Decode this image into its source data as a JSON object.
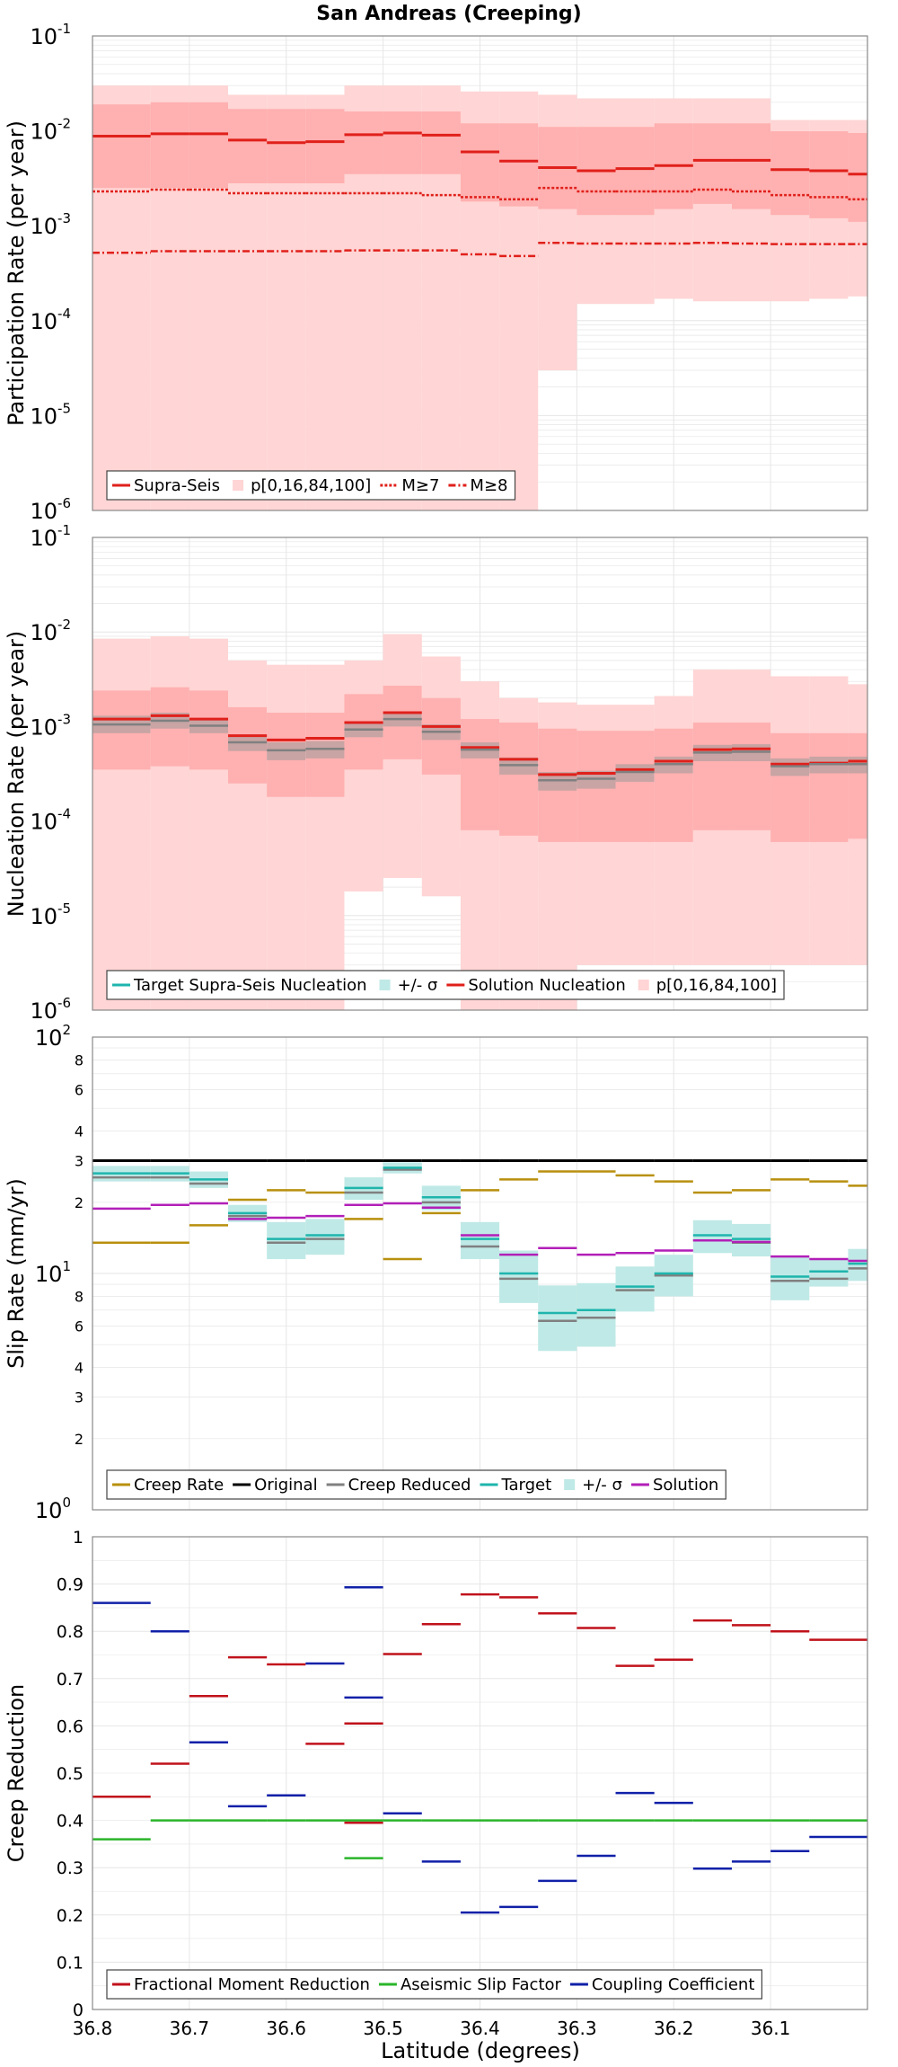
{
  "title": "San Andreas (Creeping)",
  "xlabel": "Latitude (degrees)",
  "x_ticks": [
    "36.8",
    "36.7",
    "36.6",
    "36.5",
    "36.4",
    "36.3",
    "36.2",
    "36.1"
  ],
  "x_tick_values": [
    36.8,
    36.7,
    36.6,
    36.5,
    36.4,
    36.3,
    36.2,
    36.1
  ],
  "xlim": [
    36.8,
    36.0
  ],
  "segment_edges": [
    36.8,
    36.74,
    36.7,
    36.66,
    36.62,
    36.58,
    36.54,
    36.5,
    36.46,
    36.42,
    36.38,
    36.34,
    36.3,
    36.26,
    36.22,
    36.18,
    36.14,
    36.1,
    36.06,
    36.02,
    36.0
  ],
  "colors": {
    "red": "#e0201b",
    "pink": "#ffd5d5",
    "pink_dark": "#ffb0b0",
    "teal": "#1fb5ad",
    "teal_band": "#bfe9e6",
    "grey": "#808080",
    "black": "#000000",
    "gold": "#b8900e",
    "purple": "#b21fb8",
    "crimson": "#c0121b",
    "green": "#2ab52a",
    "navy": "#1020a8",
    "grid": "#e6e6e6"
  },
  "chart_data": [
    {
      "type": "line",
      "scale": "log",
      "ylabel": "Participation Rate (per year)",
      "ylim": [
        1e-06,
        0.1
      ],
      "y_ticks": [
        {
          "base": "10",
          "exp": "-6"
        },
        {
          "base": "10",
          "exp": "-5"
        },
        {
          "base": "10",
          "exp": "-4"
        },
        {
          "base": "10",
          "exp": "-3"
        },
        {
          "base": "10",
          "exp": "-2"
        },
        {
          "base": "10",
          "exp": "-1"
        }
      ],
      "legend": [
        "Supra-Seis",
        "p[0,16,84,100]",
        "M≥7",
        "M≥8"
      ],
      "series": [
        {
          "name": "Supra-Seis",
          "values": [
            0.0088,
            0.0093,
            0.0093,
            0.008,
            0.0075,
            0.0077,
            0.0091,
            0.0095,
            0.009,
            0.006,
            0.0048,
            0.0041,
            0.0038,
            0.004,
            0.0043,
            0.0049,
            0.0049,
            0.0039,
            0.0038,
            0.0035
          ]
        },
        {
          "name": "M≥7",
          "values": [
            0.0023,
            0.0024,
            0.0024,
            0.0022,
            0.0022,
            0.0022,
            0.0022,
            0.0022,
            0.0021,
            0.002,
            0.0019,
            0.0025,
            0.0023,
            0.0023,
            0.0023,
            0.0024,
            0.0023,
            0.0021,
            0.002,
            0.0019
          ]
        },
        {
          "name": "M≥8",
          "values": [
            0.00052,
            0.00054,
            0.00054,
            0.00054,
            0.00054,
            0.00054,
            0.00055,
            0.00055,
            0.00055,
            0.0005,
            0.00048,
            0.00066,
            0.00065,
            0.00065,
            0.00065,
            0.00066,
            0.00065,
            0.00064,
            0.00064,
            0.00064
          ]
        },
        {
          "name": "p0",
          "values": [
            1e-06,
            1e-06,
            1e-06,
            1e-06,
            1e-06,
            1e-06,
            1e-06,
            1e-06,
            1e-06,
            1e-06,
            1e-06,
            3e-05,
            0.00015,
            0.00015,
            0.00017,
            0.00016,
            0.00016,
            0.00016,
            0.00017,
            0.00018
          ]
        },
        {
          "name": "p16",
          "values": [
            0.0025,
            0.0025,
            0.0025,
            0.0028,
            0.0028,
            0.0028,
            0.0035,
            0.0035,
            0.0035,
            0.0018,
            0.0016,
            0.0015,
            0.0013,
            0.0013,
            0.0015,
            0.0017,
            0.0015,
            0.0013,
            0.0012,
            0.0011
          ]
        },
        {
          "name": "p84",
          "values": [
            0.019,
            0.02,
            0.02,
            0.017,
            0.017,
            0.017,
            0.016,
            0.016,
            0.016,
            0.012,
            0.012,
            0.011,
            0.011,
            0.011,
            0.012,
            0.012,
            0.012,
            0.0099,
            0.0099,
            0.0095
          ]
        },
        {
          "name": "p100",
          "values": [
            0.03,
            0.03,
            0.03,
            0.024,
            0.024,
            0.024,
            0.03,
            0.03,
            0.03,
            0.026,
            0.026,
            0.024,
            0.022,
            0.022,
            0.022,
            0.022,
            0.022,
            0.013,
            0.013,
            0.013
          ]
        }
      ]
    },
    {
      "type": "line",
      "scale": "log",
      "ylabel": "Nucleation Rate (per year)",
      "ylim": [
        1e-06,
        0.1
      ],
      "y_ticks": [
        {
          "base": "10",
          "exp": "-6"
        },
        {
          "base": "10",
          "exp": "-5"
        },
        {
          "base": "10",
          "exp": "-4"
        },
        {
          "base": "10",
          "exp": "-3"
        },
        {
          "base": "10",
          "exp": "-2"
        },
        {
          "base": "10",
          "exp": "-1"
        }
      ],
      "legend": [
        "Target Supra-Seis Nucleation",
        "+/- σ",
        "Solution Nucleation",
        "p[0,16,84,100]"
      ],
      "series": [
        {
          "name": "Target",
          "values": [
            0.00105,
            0.00115,
            0.00102,
            0.00068,
            0.00056,
            0.00058,
            0.00093,
            0.0012,
            0.00088,
            0.00057,
            0.00039,
            0.00027,
            0.00028,
            0.00033,
            0.0004,
            0.00053,
            0.00054,
            0.00038,
            0.0004,
            0.0004
          ]
        },
        {
          "name": "Target σ lo",
          "values": [
            0.00085,
            0.00095,
            0.00085,
            0.00055,
            0.00044,
            0.00046,
            0.00077,
            0.001,
            0.00072,
            0.00046,
            0.00031,
            0.00021,
            0.00022,
            0.00026,
            0.00032,
            0.00043,
            0.00043,
            0.0003,
            0.00032,
            0.00032
          ]
        },
        {
          "name": "Target σ hi",
          "values": [
            0.0013,
            0.0014,
            0.0012,
            0.00082,
            0.00068,
            0.0007,
            0.0011,
            0.0014,
            0.00105,
            0.00068,
            0.00047,
            0.00033,
            0.00034,
            0.0004,
            0.00048,
            0.00064,
            0.00065,
            0.00046,
            0.00048,
            0.00048
          ]
        },
        {
          "name": "Solution",
          "values": [
            0.0012,
            0.0013,
            0.0012,
            0.0008,
            0.00072,
            0.00075,
            0.0011,
            0.0014,
            0.001,
            0.0006,
            0.00045,
            0.00031,
            0.00032,
            0.00035,
            0.00043,
            0.00057,
            0.00058,
            0.0004,
            0.00041,
            0.00043
          ]
        },
        {
          "name": "p0",
          "values": [
            1e-06,
            1e-06,
            1e-06,
            1e-06,
            1e-06,
            1e-06,
            1.8e-05,
            2.5e-05,
            1.6e-05,
            1e-06,
            1e-06,
            1e-06,
            3e-06,
            3e-06,
            3e-06,
            3e-06,
            3e-06,
            3e-06,
            3e-06,
            3e-06
          ]
        },
        {
          "name": "p16",
          "values": [
            0.00035,
            0.00038,
            0.00035,
            0.00025,
            0.00018,
            0.00018,
            0.00035,
            0.00045,
            0.00031,
            8e-05,
            7e-05,
            6e-05,
            6e-05,
            6e-05,
            6e-05,
            8e-05,
            8e-05,
            6e-05,
            6e-05,
            6.5e-05
          ]
        },
        {
          "name": "p84",
          "values": [
            0.0024,
            0.0026,
            0.0024,
            0.0016,
            0.0014,
            0.0014,
            0.0022,
            0.0027,
            0.002,
            0.0012,
            0.0011,
            0.00095,
            0.0009,
            0.0009,
            0.00095,
            0.0011,
            0.0011,
            0.00085,
            0.00085,
            0.00085
          ]
        },
        {
          "name": "p100",
          "values": [
            0.0085,
            0.009,
            0.0085,
            0.005,
            0.0045,
            0.0045,
            0.005,
            0.0095,
            0.0055,
            0.003,
            0.002,
            0.0018,
            0.0017,
            0.0017,
            0.0021,
            0.004,
            0.004,
            0.0034,
            0.0034,
            0.0028
          ]
        }
      ]
    },
    {
      "type": "line",
      "scale": "log",
      "ylabel": "Slip Rate (mm/yr)",
      "ylim": [
        1,
        100
      ],
      "y_ticks": [
        {
          "base": "10",
          "exp": "0"
        },
        {
          "base": "10",
          "exp": "1"
        },
        {
          "base": "10",
          "exp": "2"
        }
      ],
      "minor_ticks": [
        {
          "label": "2",
          "value": 2
        },
        {
          "label": "3",
          "value": 3
        },
        {
          "label": "4",
          "value": 4
        },
        {
          "label": "6",
          "value": 6
        },
        {
          "label": "8",
          "value": 8
        },
        {
          "label": "2",
          "value": 20
        },
        {
          "label": "3",
          "value": 30
        },
        {
          "label": "4",
          "value": 40
        },
        {
          "label": "6",
          "value": 60
        },
        {
          "label": "8",
          "value": 80
        }
      ],
      "legend": [
        "Creep Rate",
        "Original",
        "Creep Reduced",
        "Target",
        "+/- σ",
        "Solution"
      ],
      "series": [
        {
          "name": "Creep Rate",
          "values": [
            13.5,
            13.5,
            16,
            20.5,
            22.5,
            22,
            17,
            11.5,
            18,
            22.5,
            25,
            27,
            27,
            26,
            24.5,
            22,
            22.5,
            25,
            24.5,
            23.5
          ]
        },
        {
          "name": "Original",
          "values": [
            30,
            30,
            30,
            30,
            30,
            30,
            30,
            30,
            30,
            30,
            30,
            30,
            30,
            30,
            30,
            30,
            30,
            30,
            30,
            30
          ]
        },
        {
          "name": "Creep Reduced",
          "values": [
            25.5,
            25.5,
            24,
            17.5,
            13.5,
            14,
            22,
            27.5,
            20,
            13,
            9.5,
            6.3,
            6.5,
            8.5,
            9.8,
            13.8,
            13.5,
            9.3,
            9.5,
            10.5
          ]
        },
        {
          "name": "Target",
          "values": [
            26.5,
            26.5,
            25,
            18,
            14,
            14.5,
            23,
            28,
            21,
            14,
            10,
            6.8,
            7,
            8.8,
            10,
            14.5,
            14,
            9.7,
            10.2,
            11
          ]
        },
        {
          "name": "Target σ lo",
          "values": [
            24.5,
            24.5,
            23,
            16.5,
            11.5,
            12,
            20.5,
            26.5,
            18.5,
            11.5,
            7.5,
            4.7,
            4.9,
            6.9,
            8,
            12.2,
            11.8,
            7.7,
            8.8,
            9.3
          ]
        },
        {
          "name": "Target σ hi",
          "values": [
            28.5,
            28.5,
            27,
            19.5,
            16.5,
            17,
            25.5,
            29.5,
            23.5,
            16.5,
            12.5,
            8.9,
            9.1,
            10.7,
            12,
            16.8,
            16.2,
            11.7,
            11.6,
            12.7
          ]
        },
        {
          "name": "Solution",
          "values": [
            18.8,
            19.5,
            19.8,
            17,
            17.2,
            17.5,
            19.5,
            19.8,
            19,
            14.5,
            12,
            12.8,
            12,
            12.2,
            12.5,
            13.8,
            13.6,
            11.8,
            11.5,
            11.3
          ]
        }
      ]
    },
    {
      "type": "line",
      "scale": "linear",
      "ylabel": "Creep Reduction",
      "ylim": [
        0,
        1
      ],
      "y_ticks": [
        "0",
        "0.1",
        "0.2",
        "0.3",
        "0.4",
        "0.5",
        "0.6",
        "0.7",
        "0.8",
        "0.9",
        "1"
      ],
      "legend": [
        "Fractional Moment Reduction",
        "Aseismic Slip Factor",
        "Coupling Coefficient"
      ],
      "series": [
        {
          "name": "Fractional Moment Reduction",
          "values": [
            0.45,
            0.45,
            0.52,
            0.663,
            0.745,
            0.73,
            0.562,
            0.395,
            0.605,
            0.752,
            0.815,
            0.878,
            0.872,
            0.838,
            0.807,
            0.727,
            0.74,
            0.823,
            0.813,
            0.8,
            0.782
          ]
        },
        {
          "name": "Aseismic Slip Factor",
          "values": [
            0.36,
            0.36,
            0.4,
            0.4,
            0.4,
            0.4,
            0.4,
            0.4,
            0.32,
            0.4,
            0.4,
            0.4,
            0.4,
            0.4,
            0.4,
            0.4,
            0.4,
            0.4,
            0.4,
            0.4,
            0.4
          ]
        },
        {
          "name": "Coupling Coefficient",
          "values": [
            0.86,
            0.86,
            0.8,
            0.565,
            0.43,
            0.453,
            0.732,
            0.893,
            0.66,
            0.415,
            0.313,
            0.205,
            0.217,
            0.272,
            0.325,
            0.458,
            0.437,
            0.298,
            0.313,
            0.335,
            0.365
          ]
        }
      ]
    }
  ]
}
